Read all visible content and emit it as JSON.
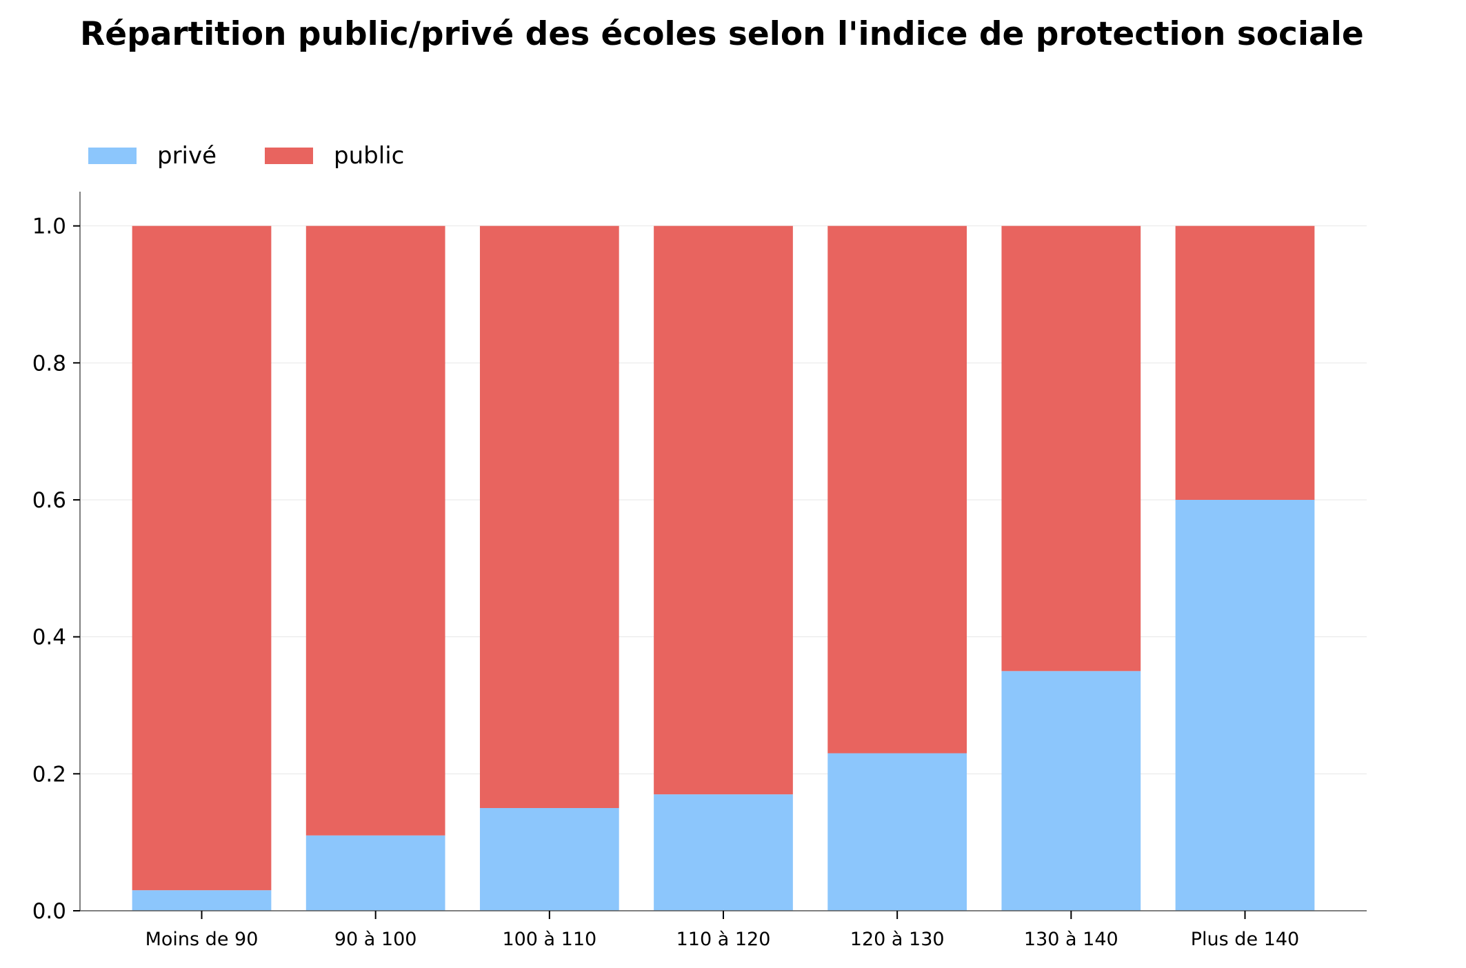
{
  "chart_data": {
    "type": "bar",
    "stacked": true,
    "title": "Répartition public/privé des écoles selon l'indice de protection sociale",
    "xlabel": "",
    "ylabel": "",
    "categories": [
      "Moins de 90",
      "90 à 100",
      "100 à 110",
      "110 à 120",
      "120 à 130",
      "130 à 140",
      "Plus de 140"
    ],
    "series": [
      {
        "name": "privé",
        "color": "#8cc6fc",
        "values": [
          0.03,
          0.11,
          0.15,
          0.17,
          0.23,
          0.35,
          0.6
        ]
      },
      {
        "name": "public",
        "color": "#e8645f",
        "values": [
          0.97,
          0.89,
          0.85,
          0.83,
          0.77,
          0.65,
          0.4
        ]
      }
    ],
    "ylim": [
      0,
      1.05
    ],
    "yticks": [
      "0.0",
      "0.2",
      "0.4",
      "0.6",
      "0.8",
      "1.0"
    ],
    "grid": true,
    "legend_position": "top-left"
  }
}
